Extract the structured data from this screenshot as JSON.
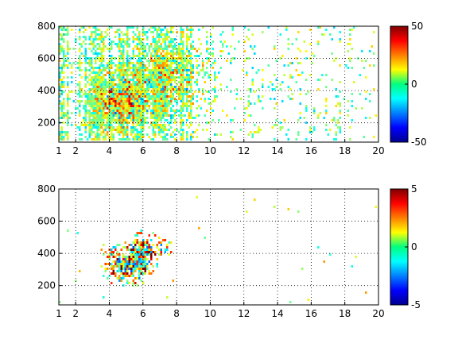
{
  "chart_data": [
    {
      "type": "heatmap",
      "title": "",
      "xlabel": "",
      "ylabel": "",
      "xlim": [
        1,
        20
      ],
      "ylim": [
        80,
        800
      ],
      "grid": true,
      "colormap": "jet",
      "x_ticks": [
        "1",
        "2",
        "4",
        "6",
        "8",
        "10",
        "12",
        "14",
        "16",
        "18",
        "20"
      ],
      "y_ticks": [
        "200",
        "400",
        "600",
        "800"
      ],
      "colorbar": {
        "min": -50,
        "max": 50,
        "ticks": [
          "50",
          "0",
          "-50"
        ]
      },
      "clusters": [
        {
          "x": 4.4,
          "y": 310,
          "sx": 1.0,
          "sy": 110,
          "intensity": 0.9
        },
        {
          "x": 6.2,
          "y": 420,
          "sx": 1.6,
          "sy": 160,
          "intensity": 0.6
        },
        {
          "x": 8.3,
          "y": 520,
          "sx": 1.2,
          "sy": 150,
          "intensity": 0.4
        }
      ],
      "background_coverage": "sparse vertical streaks from x=1 to x=20, denser below x=9"
    },
    {
      "type": "heatmap",
      "title": "",
      "xlabel": "",
      "ylabel": "",
      "xlim": [
        1,
        20
      ],
      "ylim": [
        80,
        800
      ],
      "grid": true,
      "colormap": "jet",
      "x_ticks": [
        "1",
        "2",
        "4",
        "6",
        "8",
        "10",
        "12",
        "14",
        "16",
        "18",
        "20"
      ],
      "y_ticks": [
        "200",
        "400",
        "600",
        "800"
      ],
      "colorbar": {
        "min": -5,
        "max": 5,
        "ticks": [
          "5",
          "0",
          "-5"
        ]
      },
      "clusters": [
        {
          "x": 4.8,
          "y": 330,
          "sx": 0.7,
          "sy": 70,
          "intensity": 1.0
        },
        {
          "x": 5.9,
          "y": 380,
          "sx": 0.5,
          "sy": 90,
          "intensity": 0.9
        },
        {
          "x": 7.0,
          "y": 440,
          "sx": 0.6,
          "sy": 50,
          "intensity": 0.4
        }
      ],
      "background_coverage": "mostly empty; isolated points near x=1.5, 2.2, 3.3, 5.5, 8.2, 10, 14"
    }
  ]
}
